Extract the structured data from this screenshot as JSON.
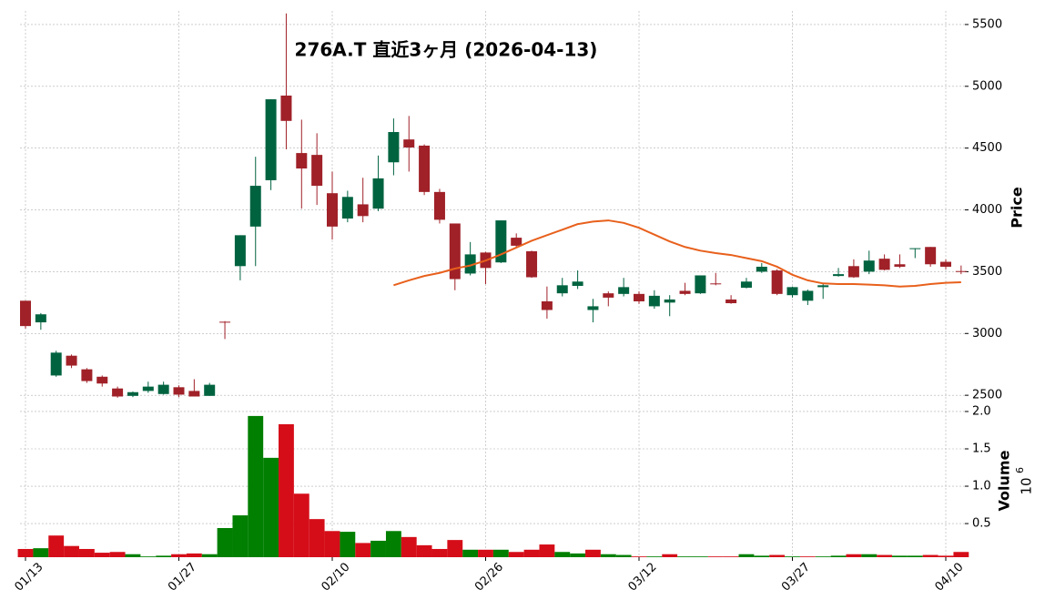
{
  "chart_data": {
    "type": "candlestick",
    "title": "276A.T 直近3ヶ月 (2026-04-13)",
    "ylabel": "Price",
    "volume_label": "Volume",
    "volume_scale_base": "10",
    "volume_scale_exponent": "6",
    "categories": [
      "01/13",
      null,
      null,
      null,
      null,
      null,
      null,
      null,
      null,
      null,
      "01/27",
      null,
      null,
      null,
      null,
      null,
      null,
      null,
      null,
      null,
      "02/10",
      null,
      null,
      null,
      null,
      null,
      null,
      null,
      null,
      null,
      "02/26",
      null,
      null,
      null,
      null,
      null,
      null,
      null,
      null,
      null,
      "03/12",
      null,
      null,
      null,
      null,
      null,
      null,
      null,
      null,
      null,
      "03/27",
      null,
      null,
      null,
      null,
      null,
      null,
      null,
      null,
      null,
      "04/10",
      null
    ],
    "open": [
      3265,
      3090,
      2660,
      2820,
      2710,
      2650,
      2555,
      2495,
      2535,
      2510,
      2565,
      2535,
      2495,
      3095,
      3545,
      3865,
      4240,
      4925,
      4460,
      4445,
      4135,
      3930,
      4045,
      4010,
      4385,
      4570,
      4520,
      4145,
      3890,
      3485,
      3655,
      3575,
      3775,
      3665,
      3260,
      3325,
      3385,
      3190,
      3325,
      3320,
      3320,
      3220,
      3250,
      3345,
      3325,
      3405,
      3275,
      3370,
      3500,
      3510,
      3310,
      3265,
      3375,
      3465,
      3545,
      3500,
      3605,
      3560,
      3685,
      3700,
      3580,
      3505
    ],
    "high": [
      3265,
      3165,
      2860,
      2830,
      2720,
      2660,
      2570,
      2530,
      2610,
      2610,
      2580,
      2630,
      2600,
      3100,
      3795,
      4430,
      4895,
      5590,
      4730,
      4620,
      4310,
      4155,
      4260,
      4440,
      4740,
      4760,
      4530,
      4170,
      3890,
      3740,
      3660,
      3915,
      3810,
      3670,
      3380,
      3450,
      3510,
      3280,
      3340,
      3450,
      3340,
      3350,
      3310,
      3410,
      3470,
      3490,
      3310,
      3450,
      3570,
      3520,
      3380,
      3355,
      3410,
      3530,
      3600,
      3670,
      3640,
      3640,
      3690,
      3700,
      3600,
      3550
    ],
    "low": [
      3040,
      3030,
      2650,
      2720,
      2600,
      2570,
      2480,
      2485,
      2520,
      2505,
      2485,
      2490,
      2495,
      2955,
      3430,
      3545,
      4160,
      4490,
      4010,
      4040,
      3760,
      3900,
      3900,
      3990,
      4280,
      4310,
      4120,
      3890,
      3350,
      3470,
      3400,
      3570,
      3690,
      3450,
      3120,
      3300,
      3360,
      3090,
      3220,
      3300,
      3240,
      3200,
      3140,
      3310,
      3320,
      3390,
      3240,
      3365,
      3490,
      3310,
      3290,
      3230,
      3280,
      3460,
      3450,
      3480,
      3510,
      3530,
      3610,
      3540,
      3520,
      3480
    ],
    "close": [
      3060,
      3155,
      2845,
      2740,
      2615,
      2595,
      2490,
      2525,
      2570,
      2585,
      2505,
      2490,
      2585,
      3090,
      3795,
      4195,
      4895,
      4720,
      4335,
      4195,
      3865,
      4105,
      3950,
      4255,
      4630,
      4505,
      4145,
      3920,
      3440,
      3640,
      3530,
      3915,
      3710,
      3455,
      3190,
      3390,
      3420,
      3220,
      3290,
      3375,
      3260,
      3305,
      3275,
      3320,
      3470,
      3400,
      3245,
      3420,
      3540,
      3320,
      3375,
      3345,
      3390,
      3480,
      3455,
      3590,
      3515,
      3540,
      3690,
      3560,
      3540,
      3500
    ],
    "ma": [
      null,
      null,
      null,
      null,
      null,
      null,
      null,
      null,
      null,
      null,
      null,
      null,
      null,
      null,
      null,
      null,
      null,
      null,
      null,
      null,
      null,
      null,
      null,
      null,
      3390,
      3430,
      3465,
      3490,
      3525,
      3550,
      3590,
      3640,
      3695,
      3750,
      3795,
      3840,
      3885,
      3905,
      3915,
      3895,
      3855,
      3800,
      3745,
      3700,
      3670,
      3650,
      3635,
      3610,
      3585,
      3540,
      3475,
      3430,
      3405,
      3400,
      3400,
      3395,
      3390,
      3380,
      3385,
      3400,
      3410,
      3415
    ],
    "ma_color": "#e8601c",
    "volume": [
      0.16,
      0.17,
      0.34,
      0.2,
      0.16,
      0.11,
      0.12,
      0.09,
      0.06,
      0.07,
      0.09,
      0.1,
      0.09,
      0.44,
      0.61,
      1.94,
      1.38,
      1.83,
      0.9,
      0.56,
      0.4,
      0.39,
      0.24,
      0.27,
      0.4,
      0.32,
      0.21,
      0.16,
      0.28,
      0.15,
      0.15,
      0.15,
      0.12,
      0.15,
      0.22,
      0.12,
      0.1,
      0.15,
      0.09,
      0.08,
      0.06,
      0.06,
      0.09,
      0.06,
      0.06,
      0.06,
      0.06,
      0.09,
      0.07,
      0.08,
      0.06,
      0.06,
      0.06,
      0.07,
      0.09,
      0.09,
      0.08,
      0.07,
      0.07,
      0.08,
      0.07,
      0.12
    ],
    "up_color": "#006340",
    "down_color": "#a02128",
    "volume_up_color": "#007f00",
    "volume_down_color": "#d50d18",
    "ylim": [
      2420,
      5610
    ],
    "yticks": [
      2500,
      3000,
      3500,
      4000,
      4500,
      5000,
      5500
    ],
    "volume_ylim": [
      0.05,
      2.085
    ],
    "volume_yticks": [
      {
        "value": 0.5,
        "label": "0.5"
      },
      {
        "value": 1,
        "label": "1.0"
      },
      {
        "value": 1.5,
        "label": "1.5"
      },
      {
        "value": 2,
        "label": "2.0"
      }
    ],
    "grid": true
  }
}
